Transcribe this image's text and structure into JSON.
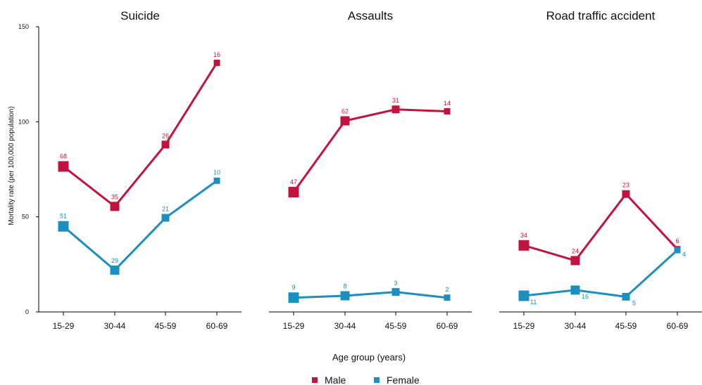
{
  "colors": {
    "male": "#c4123f",
    "female": "#1a8fc0",
    "axis": "#000000"
  },
  "xlabel": "Age group (years)",
  "ylabel": "Mortality rate (per 100,000 population)",
  "yticks": [
    "0",
    "50",
    "100",
    "150"
  ],
  "legend": [
    {
      "key": "male",
      "label": "Male"
    },
    {
      "key": "female",
      "label": "Female"
    }
  ],
  "chart_data": [
    {
      "type": "line",
      "title": "Suicide",
      "categories": [
        "15-29",
        "30-44",
        "45-59",
        "60-69"
      ],
      "ylim": [
        0,
        150
      ],
      "series": [
        {
          "name": "Male",
          "values": [
            76.5,
            55.5,
            88,
            131
          ],
          "labels": [
            "68",
            "35",
            "26",
            "16"
          ]
        },
        {
          "name": "Female",
          "values": [
            45,
            22,
            49.5,
            69
          ],
          "labels": [
            "51",
            "29",
            "21",
            "10"
          ]
        }
      ]
    },
    {
      "type": "line",
      "title": "Assaults",
      "categories": [
        "15-29",
        "30-44",
        "45-59",
        "60-69"
      ],
      "ylim": [
        0,
        150
      ],
      "series": [
        {
          "name": "Male",
          "values": [
            63,
            100.5,
            106.5,
            105.5
          ],
          "labels": [
            "47",
            "62",
            "31",
            "14"
          ]
        },
        {
          "name": "Female",
          "values": [
            7.5,
            8.5,
            10.5,
            7.5
          ],
          "labels": [
            "9",
            "8",
            "3",
            "2"
          ]
        }
      ]
    },
    {
      "type": "line",
      "title": "Road traffic accident",
      "categories": [
        "15-29",
        "30-44",
        "45-59",
        "60-69"
      ],
      "ylim": [
        0,
        150
      ],
      "series": [
        {
          "name": "Male",
          "values": [
            35,
            27,
            62,
            33
          ],
          "labels": [
            "34",
            "24",
            "23",
            "6"
          ]
        },
        {
          "name": "Female",
          "values": [
            8.5,
            11.5,
            8,
            32.5
          ],
          "labels": [
            "11",
            "16",
            "5",
            "4"
          ]
        }
      ]
    }
  ]
}
